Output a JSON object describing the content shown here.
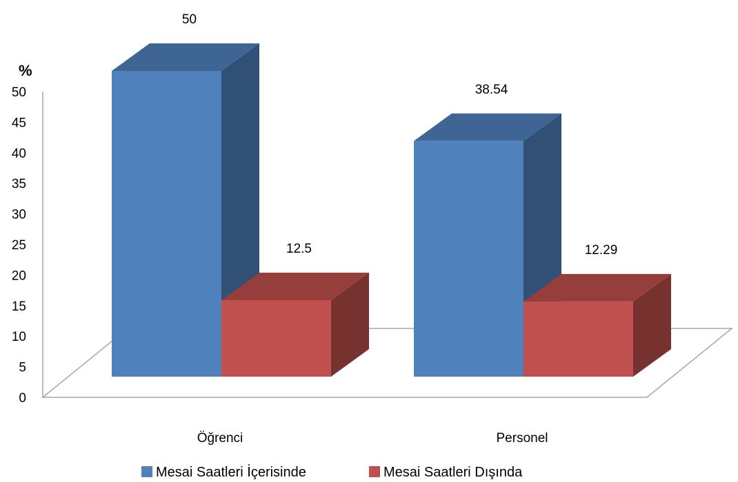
{
  "chart_data": {
    "type": "bar",
    "style": "3d-clustered-column",
    "ylabel": "%",
    "ylim": [
      0,
      50
    ],
    "yticks": [
      0,
      5,
      10,
      15,
      20,
      25,
      30,
      35,
      40,
      45,
      50
    ],
    "categories": [
      "Öğrenci",
      "Personel"
    ],
    "series": [
      {
        "name": "Mesai Saatleri İçerisinde",
        "values": [
          50,
          38.54
        ],
        "labels": [
          "50",
          "38.54"
        ],
        "color": "#4F81BD"
      },
      {
        "name": "Mesai Saatleri Dışında",
        "values": [
          12.5,
          12.29
        ],
        "labels": [
          "12.5",
          "12.29"
        ],
        "color": "#C0504D"
      }
    ],
    "grid": false,
    "legend": "bottom"
  }
}
